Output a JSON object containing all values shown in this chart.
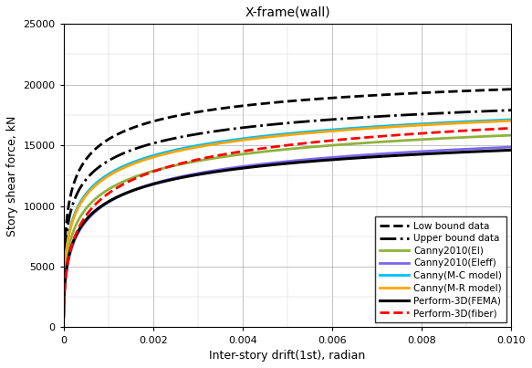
{
  "title": "X-frame(wall)",
  "xlabel": "Inter-story drift(1st), radian",
  "ylabel": "Story shear force, kN",
  "xlim": [
    0,
    0.01
  ],
  "ylim": [
    0,
    25000
  ],
  "xticks": [
    0,
    0.002,
    0.004,
    0.006,
    0.008,
    0.01
  ],
  "yticks": [
    0,
    5000,
    10000,
    15000,
    20000,
    25000
  ],
  "curves": [
    {
      "label": "Low bound data",
      "color": "#000000",
      "ls": "--",
      "lw": 2.0,
      "ymax": 23000,
      "x_half": 0.0002,
      "n": 0.45
    },
    {
      "label": "Upper bound data",
      "color": "#000000",
      "ls": "-.",
      "lw": 2.0,
      "ymax": 22000,
      "x_half": 0.0003,
      "n": 0.42
    },
    {
      "label": "Canny2010(EI)",
      "color": "#8db33a",
      "ls": "-",
      "lw": 2.0,
      "ymax": 20000,
      "x_half": 0.00055,
      "n": 0.46
    },
    {
      "label": "Canny2010(Eleff)",
      "color": "#7B68EE",
      "ls": "-",
      "lw": 2.0,
      "ymax": 19000,
      "x_half": 0.0007,
      "n": 0.48
    },
    {
      "label": "Canny(M-C model)",
      "color": "#00BFFF",
      "ls": "-",
      "lw": 2.0,
      "ymax": 21500,
      "x_half": 0.00045,
      "n": 0.44
    },
    {
      "label": "Canny(M-R model)",
      "color": "#FFA500",
      "ls": "-",
      "lw": 2.0,
      "ymax": 21500,
      "x_half": 0.00048,
      "n": 0.44
    },
    {
      "label": "Perform-3D(FEMA)",
      "color": "#000000",
      "ls": "-",
      "lw": 2.2,
      "ymax": 18500,
      "x_half": 0.0006,
      "n": 0.47
    },
    {
      "label": "Perform-3D(fiber)",
      "color": "#FF0000",
      "ls": "--",
      "lw": 2.0,
      "ymax": 21200,
      "x_half": 0.00085,
      "n": 0.5
    }
  ],
  "grid_color": "#aaaaaa",
  "grid_minor_color": "#cccccc",
  "bg_color": "#ffffff",
  "legend_fontsize": 7.5,
  "tick_fontsize": 8,
  "label_fontsize": 9,
  "title_fontsize": 10
}
